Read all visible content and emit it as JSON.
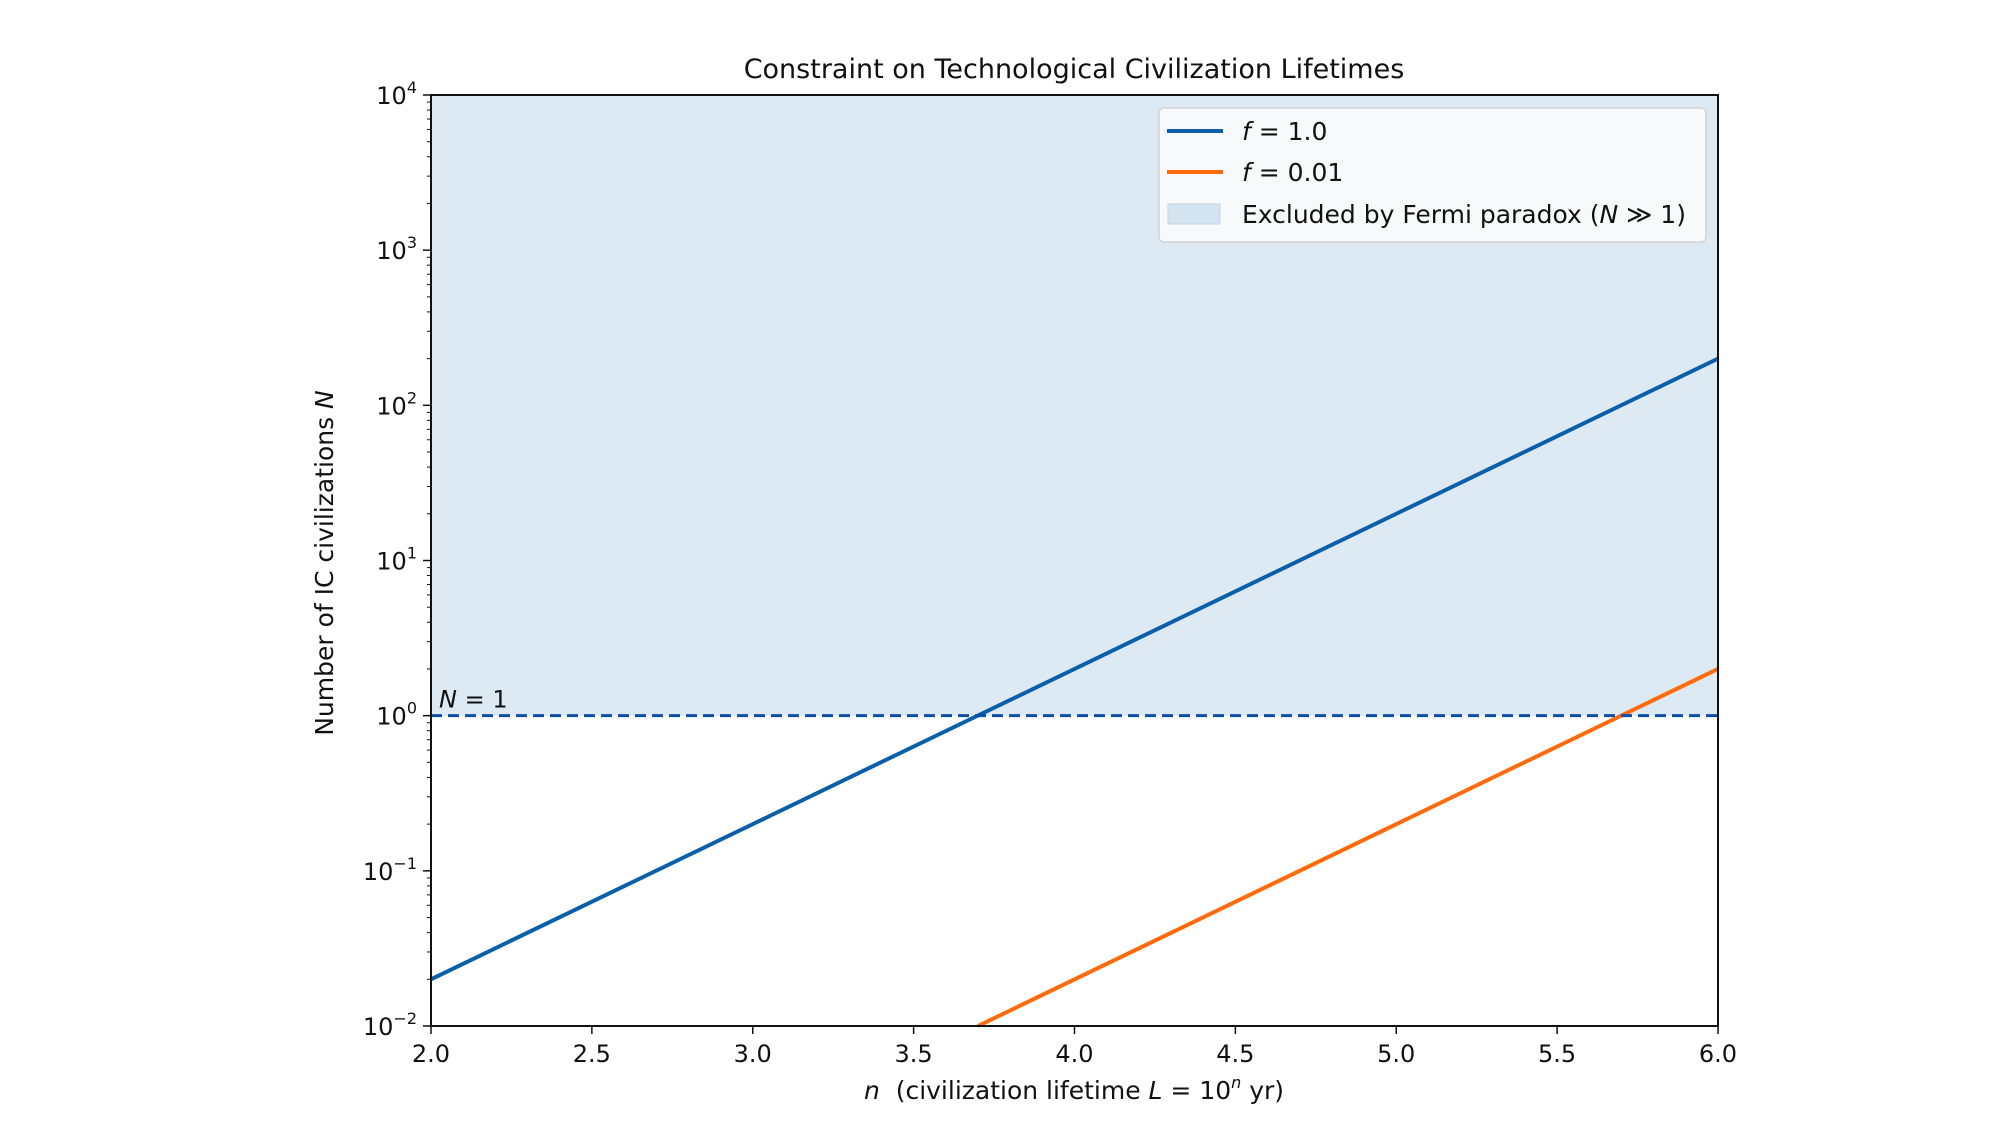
{
  "chart_data": {
    "type": "line",
    "title": "Constraint on Technological Civilization Lifetimes",
    "xlabel": "n  (civilization lifetime L = 10^n yr)",
    "xlabel_parts": {
      "n": "n",
      "pre": "  (civilization lifetime ",
      "L": "L",
      "eq": " = 10",
      "sup": "n",
      "post": " yr)"
    },
    "ylabel": "Number of IC civilizations N",
    "ylabel_parts": {
      "text": "Number of IC civilizations ",
      "N": "N"
    },
    "xlim": [
      2.0,
      6.0
    ],
    "ylim": [
      0.01,
      10000
    ],
    "yscale": "log",
    "grid": false,
    "legend_placement": "top-right",
    "x_ticks": [
      "2.0",
      "2.5",
      "3.0",
      "3.5",
      "4.0",
      "4.5",
      "5.0",
      "5.5",
      "6.0"
    ],
    "y_ticks": [
      {
        "value": 0.01,
        "exp": "−2"
      },
      {
        "value": 0.1,
        "exp": "−1"
      },
      {
        "value": 1,
        "exp": "0"
      },
      {
        "value": 10,
        "exp": "1"
      },
      {
        "value": 100,
        "exp": "2"
      },
      {
        "value": 1000,
        "exp": "3"
      },
      {
        "value": 10000,
        "exp": "4"
      }
    ],
    "series": [
      {
        "name": "f = 1.0",
        "label_f": "f",
        "label_rest": " = 1.0",
        "color": "#0a5fab",
        "x": [
          2.0,
          6.0
        ],
        "y": [
          0.02,
          200
        ]
      },
      {
        "name": "f = 0.01",
        "label_f": "f",
        "label_rest": " = 0.01",
        "color": "#ff6a0a",
        "x": [
          3.7,
          6.0
        ],
        "y": [
          0.01,
          2
        ]
      }
    ],
    "shaded_region": {
      "name": "Excluded by Fermi paradox (N ≫ 1)",
      "label_pre": "Excluded by Fermi paradox (",
      "label_N": "N",
      "label_post": " ≫ 1)",
      "y_from": 1,
      "y_to": 10000,
      "color": "#dde9f3"
    },
    "reference_line": {
      "y": 1,
      "style": "dashed",
      "color": "#0b4fa8",
      "label_N": "N",
      "label_rest": " = 1"
    }
  }
}
